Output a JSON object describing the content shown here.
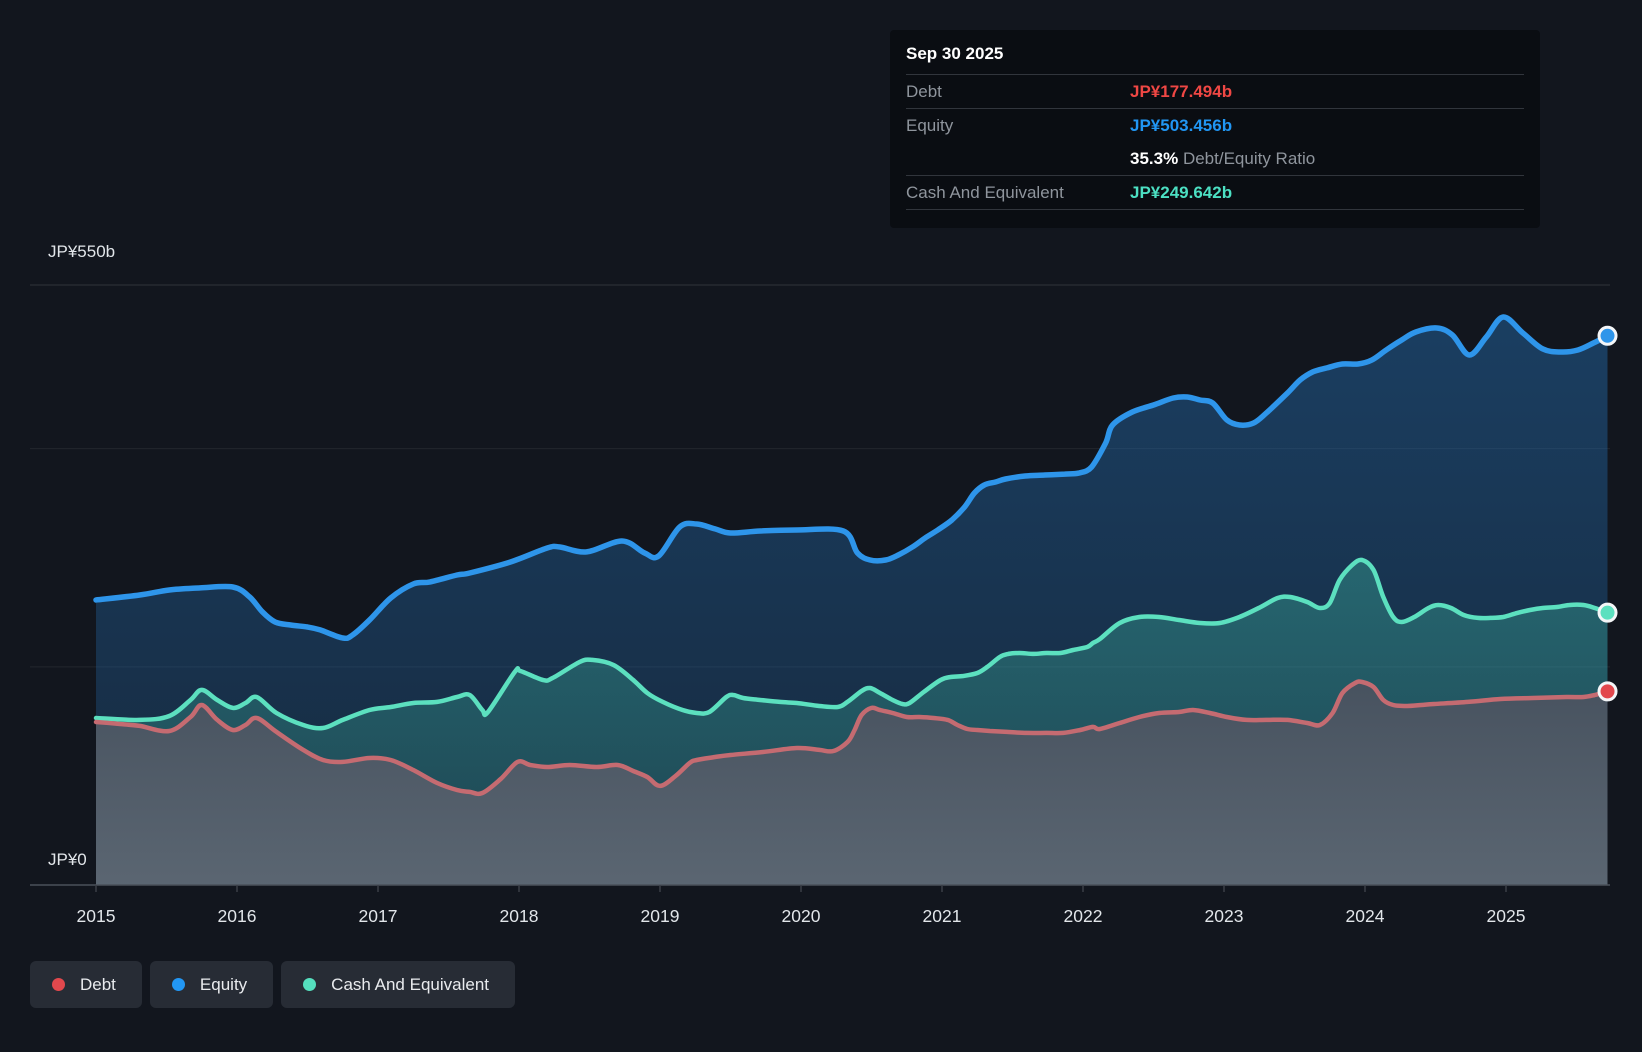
{
  "y_axis": {
    "top_label": "JP¥550b",
    "bottom_label": "JP¥0"
  },
  "x_ticks": [
    "2015",
    "2016",
    "2017",
    "2018",
    "2019",
    "2020",
    "2021",
    "2022",
    "2023",
    "2024",
    "2025"
  ],
  "tooltip": {
    "date": "Sep 30 2025",
    "debt_label": "Debt",
    "debt_value": "JP¥177.494b",
    "equity_label": "Equity",
    "equity_value": "JP¥503.456b",
    "ratio_value": "35.3%",
    "ratio_label": "Debt/Equity Ratio",
    "cash_label": "Cash And Equivalent",
    "cash_value": "JP¥249.642b"
  },
  "legend": {
    "items": [
      {
        "label": "Debt",
        "color": "#e2484d"
      },
      {
        "label": "Equity",
        "color": "#2297f4"
      },
      {
        "label": "Cash And Equivalent",
        "color": "#55dfbe"
      }
    ]
  },
  "colors": {
    "equity_line": "#2e95ea",
    "cash_line": "#5ce0bf",
    "debt_line": "#c56b71",
    "debt_marker": "#e2484d",
    "grid": "#3a3f47",
    "axis": "#4b515a",
    "text": "#e2e6ea"
  },
  "chart_data": {
    "type": "area",
    "title": "Debt to Equity History",
    "x_range": [
      2015,
      2025.75
    ],
    "y_range": [
      0,
      550
    ],
    "y_unit": "JP¥ billions",
    "y_gridline_values": [
      550,
      400,
      200
    ],
    "legend_position": "bottom-left",
    "last_point_date": "Sep 30 2025",
    "series": [
      {
        "name": "Equity",
        "last_value": 503.456,
        "points": [
          [
            2015.0,
            261.3
          ],
          [
            2015.31,
            265.8
          ],
          [
            2015.52,
            270.4
          ],
          [
            2015.74,
            272.3
          ],
          [
            2015.97,
            273.2
          ],
          [
            2016.09,
            264.0
          ],
          [
            2016.18,
            250.3
          ],
          [
            2016.27,
            241.1
          ],
          [
            2016.38,
            238.3
          ],
          [
            2016.5,
            236.5
          ],
          [
            2016.59,
            233.8
          ],
          [
            2016.75,
            226.4
          ],
          [
            2016.82,
            229.2
          ],
          [
            2016.94,
            242.9
          ],
          [
            2017.09,
            263.1
          ],
          [
            2017.25,
            275.9
          ],
          [
            2017.37,
            277.8
          ],
          [
            2017.56,
            284.2
          ],
          [
            2017.65,
            286.0
          ],
          [
            2017.94,
            296.1
          ],
          [
            2018.2,
            308.9
          ],
          [
            2018.29,
            309.8
          ],
          [
            2018.48,
            305.3
          ],
          [
            2018.73,
            315.3
          ],
          [
            2018.89,
            304.4
          ],
          [
            2018.99,
            301.6
          ],
          [
            2019.14,
            328.2
          ],
          [
            2019.26,
            330.9
          ],
          [
            2019.39,
            326.4
          ],
          [
            2019.5,
            322.7
          ],
          [
            2019.71,
            324.5
          ],
          [
            2019.97,
            325.4
          ],
          [
            2020.3,
            324.5
          ],
          [
            2020.4,
            304.4
          ],
          [
            2020.49,
            297.9
          ],
          [
            2020.6,
            297.9
          ],
          [
            2020.69,
            302.5
          ],
          [
            2020.79,
            309.8
          ],
          [
            2020.88,
            318.1
          ],
          [
            2020.97,
            325.4
          ],
          [
            2021.07,
            334.6
          ],
          [
            2021.16,
            346.5
          ],
          [
            2021.23,
            359.3
          ],
          [
            2021.3,
            366.7
          ],
          [
            2021.38,
            369.4
          ],
          [
            2021.45,
            372.2
          ],
          [
            2021.59,
            374.9
          ],
          [
            2021.73,
            375.8
          ],
          [
            2021.87,
            376.7
          ],
          [
            2021.97,
            377.6
          ],
          [
            2022.06,
            383.1
          ],
          [
            2022.16,
            405.1
          ],
          [
            2022.21,
            421.7
          ],
          [
            2022.35,
            433.6
          ],
          [
            2022.5,
            440.0
          ],
          [
            2022.64,
            446.4
          ],
          [
            2022.74,
            447.3
          ],
          [
            2022.83,
            444.6
          ],
          [
            2022.92,
            441.8
          ],
          [
            2023.02,
            426.3
          ],
          [
            2023.11,
            421.7
          ],
          [
            2023.21,
            423.5
          ],
          [
            2023.3,
            432.7
          ],
          [
            2023.45,
            451.0
          ],
          [
            2023.54,
            462.9
          ],
          [
            2023.63,
            470.3
          ],
          [
            2023.73,
            474.0
          ],
          [
            2023.84,
            477.6
          ],
          [
            2023.95,
            477.6
          ],
          [
            2024.05,
            481.3
          ],
          [
            2024.15,
            490.4
          ],
          [
            2024.26,
            499.6
          ],
          [
            2024.36,
            506.9
          ],
          [
            2024.51,
            510.6
          ],
          [
            2024.62,
            504.2
          ],
          [
            2024.74,
            485.8
          ],
          [
            2024.86,
            502.3
          ],
          [
            2024.98,
            520.7
          ],
          [
            2025.12,
            506.0
          ],
          [
            2025.26,
            491.4
          ],
          [
            2025.39,
            488.6
          ],
          [
            2025.51,
            490.4
          ],
          [
            2025.62,
            496.8
          ],
          [
            2025.72,
            503.456
          ]
        ]
      },
      {
        "name": "Cash And Equivalent",
        "last_value": 249.642,
        "points": [
          [
            2015.0,
            153.1
          ],
          [
            2015.31,
            151.3
          ],
          [
            2015.52,
            154.9
          ],
          [
            2015.67,
            169.6
          ],
          [
            2015.75,
            178.8
          ],
          [
            2015.86,
            169.6
          ],
          [
            2015.97,
            162.3
          ],
          [
            2016.06,
            166.8
          ],
          [
            2016.14,
            172.3
          ],
          [
            2016.28,
            157.7
          ],
          [
            2016.47,
            146.7
          ],
          [
            2016.61,
            143.9
          ],
          [
            2016.75,
            151.3
          ],
          [
            2016.94,
            160.4
          ],
          [
            2017.09,
            163.2
          ],
          [
            2017.25,
            166.8
          ],
          [
            2017.42,
            167.8
          ],
          [
            2017.56,
            172.3
          ],
          [
            2017.65,
            174.2
          ],
          [
            2017.74,
            160.4
          ],
          [
            2017.78,
            158.6
          ],
          [
            2017.97,
            195.3
          ],
          [
            2018.01,
            196.2
          ],
          [
            2018.17,
            187.9
          ],
          [
            2018.24,
            189.8
          ],
          [
            2018.43,
            204.4
          ],
          [
            2018.52,
            206.3
          ],
          [
            2018.67,
            201.7
          ],
          [
            2018.81,
            187.9
          ],
          [
            2018.91,
            176.0
          ],
          [
            2019.02,
            167.8
          ],
          [
            2019.16,
            160.4
          ],
          [
            2019.26,
            157.7
          ],
          [
            2019.35,
            158.6
          ],
          [
            2019.47,
            172.3
          ],
          [
            2019.52,
            174.2
          ],
          [
            2019.59,
            171.4
          ],
          [
            2019.71,
            169.6
          ],
          [
            2019.85,
            167.8
          ],
          [
            2019.97,
            166.8
          ],
          [
            2020.13,
            164.1
          ],
          [
            2020.26,
            163.2
          ],
          [
            2020.33,
            167.8
          ],
          [
            2020.43,
            177.8
          ],
          [
            2020.49,
            180.6
          ],
          [
            2020.56,
            176.0
          ],
          [
            2020.65,
            169.6
          ],
          [
            2020.72,
            165.9
          ],
          [
            2020.77,
            166.8
          ],
          [
            2020.87,
            176.9
          ],
          [
            2020.99,
            187.9
          ],
          [
            2021.06,
            190.7
          ],
          [
            2021.15,
            191.6
          ],
          [
            2021.25,
            194.3
          ],
          [
            2021.32,
            199.8
          ],
          [
            2021.41,
            209.0
          ],
          [
            2021.47,
            211.8
          ],
          [
            2021.55,
            212.7
          ],
          [
            2021.65,
            211.8
          ],
          [
            2021.74,
            212.7
          ],
          [
            2021.84,
            212.7
          ],
          [
            2021.93,
            215.4
          ],
          [
            2022.03,
            218.2
          ],
          [
            2022.07,
            221.8
          ],
          [
            2022.12,
            225.5
          ],
          [
            2022.26,
            240.2
          ],
          [
            2022.4,
            245.7
          ],
          [
            2022.54,
            245.7
          ],
          [
            2022.68,
            242.9
          ],
          [
            2022.83,
            240.2
          ],
          [
            2022.97,
            240.2
          ],
          [
            2023.11,
            245.7
          ],
          [
            2023.26,
            254.8
          ],
          [
            2023.38,
            263.1
          ],
          [
            2023.47,
            264.0
          ],
          [
            2023.59,
            259.4
          ],
          [
            2023.68,
            253.9
          ],
          [
            2023.75,
            258.5
          ],
          [
            2023.82,
            279.6
          ],
          [
            2023.91,
            293.4
          ],
          [
            2023.98,
            297.9
          ],
          [
            2024.06,
            288.8
          ],
          [
            2024.13,
            264.0
          ],
          [
            2024.2,
            245.7
          ],
          [
            2024.26,
            241.1
          ],
          [
            2024.35,
            245.7
          ],
          [
            2024.45,
            253.9
          ],
          [
            2024.52,
            256.7
          ],
          [
            2024.61,
            253.9
          ],
          [
            2024.7,
            247.5
          ],
          [
            2024.8,
            244.8
          ],
          [
            2024.89,
            244.8
          ],
          [
            2024.98,
            245.7
          ],
          [
            2025.08,
            249.4
          ],
          [
            2025.17,
            252.1
          ],
          [
            2025.26,
            253.9
          ],
          [
            2025.36,
            254.8
          ],
          [
            2025.45,
            256.7
          ],
          [
            2025.55,
            256.7
          ],
          [
            2025.63,
            253.9
          ],
          [
            2025.72,
            249.642
          ]
        ]
      },
      {
        "name": "Debt",
        "last_value": 177.494,
        "points": [
          [
            2015.0,
            149.4
          ],
          [
            2015.17,
            147.6
          ],
          [
            2015.31,
            145.8
          ],
          [
            2015.52,
            141.2
          ],
          [
            2015.67,
            154.0
          ],
          [
            2015.75,
            165.0
          ],
          [
            2015.86,
            151.3
          ],
          [
            2015.97,
            142.1
          ],
          [
            2016.06,
            146.7
          ],
          [
            2016.14,
            153.1
          ],
          [
            2016.28,
            140.3
          ],
          [
            2016.47,
            123.8
          ],
          [
            2016.61,
            114.6
          ],
          [
            2016.75,
            112.8
          ],
          [
            2016.94,
            116.4
          ],
          [
            2017.09,
            114.6
          ],
          [
            2017.25,
            105.4
          ],
          [
            2017.42,
            93.5
          ],
          [
            2017.56,
            87.1
          ],
          [
            2017.65,
            85.3
          ],
          [
            2017.74,
            84.3
          ],
          [
            2017.87,
            97.2
          ],
          [
            2017.99,
            112.8
          ],
          [
            2018.08,
            110.0
          ],
          [
            2018.2,
            108.2
          ],
          [
            2018.36,
            110.0
          ],
          [
            2018.55,
            108.2
          ],
          [
            2018.7,
            110.0
          ],
          [
            2018.81,
            104.5
          ],
          [
            2018.91,
            99.0
          ],
          [
            2019.0,
            90.8
          ],
          [
            2019.11,
            99.9
          ],
          [
            2019.21,
            111.8
          ],
          [
            2019.26,
            114.6
          ],
          [
            2019.39,
            117.3
          ],
          [
            2019.5,
            119.2
          ],
          [
            2019.73,
            121.9
          ],
          [
            2019.97,
            125.6
          ],
          [
            2020.13,
            123.8
          ],
          [
            2020.23,
            122.8
          ],
          [
            2020.33,
            131.1
          ],
          [
            2020.38,
            142.1
          ],
          [
            2020.43,
            155.8
          ],
          [
            2020.5,
            162.3
          ],
          [
            2020.56,
            160.4
          ],
          [
            2020.65,
            157.7
          ],
          [
            2020.75,
            154.0
          ],
          [
            2020.84,
            154.0
          ],
          [
            2020.94,
            153.1
          ],
          [
            2021.04,
            151.3
          ],
          [
            2021.11,
            146.7
          ],
          [
            2021.18,
            143.0
          ],
          [
            2021.25,
            142.1
          ],
          [
            2021.34,
            141.2
          ],
          [
            2021.46,
            140.3
          ],
          [
            2021.6,
            139.4
          ],
          [
            2021.74,
            139.4
          ],
          [
            2021.86,
            139.4
          ],
          [
            2021.98,
            142.1
          ],
          [
            2022.07,
            144.9
          ],
          [
            2022.12,
            143.0
          ],
          [
            2022.26,
            148.5
          ],
          [
            2022.4,
            154.0
          ],
          [
            2022.54,
            157.7
          ],
          [
            2022.68,
            158.6
          ],
          [
            2022.78,
            160.4
          ],
          [
            2022.9,
            157.7
          ],
          [
            2023.02,
            154.0
          ],
          [
            2023.16,
            151.3
          ],
          [
            2023.3,
            151.3
          ],
          [
            2023.45,
            151.3
          ],
          [
            2023.59,
            148.5
          ],
          [
            2023.68,
            146.7
          ],
          [
            2023.77,
            157.7
          ],
          [
            2023.84,
            176.0
          ],
          [
            2023.93,
            185.2
          ],
          [
            2023.98,
            186.1
          ],
          [
            2024.06,
            181.5
          ],
          [
            2024.13,
            169.6
          ],
          [
            2024.2,
            165.0
          ],
          [
            2024.3,
            164.1
          ],
          [
            2024.4,
            165.0
          ],
          [
            2024.49,
            165.9
          ],
          [
            2024.73,
            167.8
          ],
          [
            2024.96,
            170.5
          ],
          [
            2025.19,
            171.4
          ],
          [
            2025.43,
            172.3
          ],
          [
            2025.55,
            172.3
          ],
          [
            2025.63,
            174.2
          ],
          [
            2025.72,
            177.494
          ]
        ]
      }
    ]
  }
}
